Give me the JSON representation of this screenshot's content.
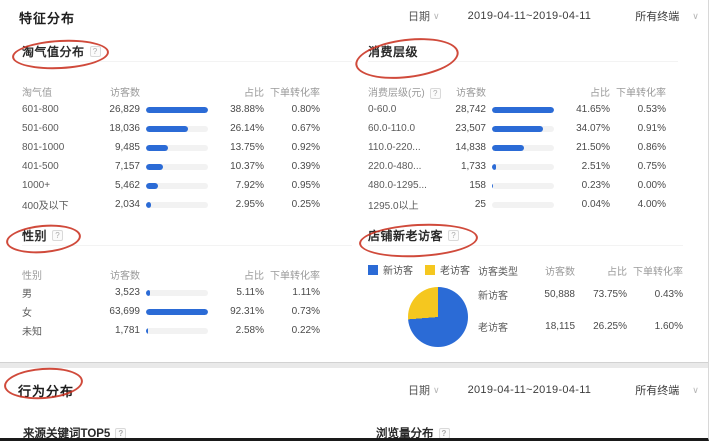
{
  "header": {
    "date_label": "日期",
    "date_range": "2019-04-11~2019-04-11",
    "terminal": "所有终端",
    "chevron": "∨"
  },
  "sections": {
    "feature": {
      "title": "特征分布"
    },
    "behavior": {
      "title": "行为分布"
    }
  },
  "panels": {
    "taoqi": {
      "title": "淘气值分布",
      "help": "?",
      "headers": {
        "h0": "淘气值",
        "h1": "访客数",
        "h2": "占比",
        "h3": "下单转化率"
      },
      "rows": [
        {
          "label": "601-800",
          "visitors": "26,829",
          "bar_pct": 100,
          "share": "38.88%",
          "conversion": "0.80%"
        },
        {
          "label": "501-600",
          "visitors": "18,036",
          "bar_pct": 67,
          "share": "26.14%",
          "conversion": "0.67%"
        },
        {
          "label": "801-1000",
          "visitors": "9,485",
          "bar_pct": 35,
          "share": "13.75%",
          "conversion": "0.92%"
        },
        {
          "label": "401-500",
          "visitors": "7,157",
          "bar_pct": 27,
          "share": "10.37%",
          "conversion": "0.39%"
        },
        {
          "label": "1000+",
          "visitors": "5,462",
          "bar_pct": 20,
          "share": "7.92%",
          "conversion": "0.95%"
        },
        {
          "label": "400及以下",
          "visitors": "2,034",
          "bar_pct": 8,
          "share": "2.95%",
          "conversion": "0.25%"
        }
      ]
    },
    "consumption": {
      "title": "消费层级",
      "help": "?",
      "headers": {
        "h0": "消费层级(元)",
        "h1": "访客数",
        "h2": "占比",
        "h3": "下单转化率"
      },
      "rows": [
        {
          "label": "0-60.0",
          "visitors": "28,742",
          "bar_pct": 100,
          "share": "41.65%",
          "conversion": "0.53%"
        },
        {
          "label": "60.0-110.0",
          "visitors": "23,507",
          "bar_pct": 82,
          "share": "34.07%",
          "conversion": "0.91%"
        },
        {
          "label": "110.0-220...",
          "visitors": "14,838",
          "bar_pct": 52,
          "share": "21.50%",
          "conversion": "0.86%"
        },
        {
          "label": "220.0-480...",
          "visitors": "1,733",
          "bar_pct": 6,
          "share": "2.51%",
          "conversion": "0.75%"
        },
        {
          "label": "480.0-1295...",
          "visitors": "158",
          "bar_pct": 0.5,
          "share": "0.23%",
          "conversion": "0.00%"
        },
        {
          "label": "1295.0以上",
          "visitors": "25",
          "bar_pct": 0.1,
          "share": "0.04%",
          "conversion": "4.00%"
        }
      ]
    },
    "gender": {
      "title": "性别",
      "help": "?",
      "headers": {
        "h0": "性别",
        "h1": "访客数",
        "h2": "占比",
        "h3": "下单转化率"
      },
      "rows": [
        {
          "label": "男",
          "visitors": "3,523",
          "bar_pct": 6,
          "share": "5.11%",
          "conversion": "1.11%"
        },
        {
          "label": "女",
          "visitors": "63,699",
          "bar_pct": 100,
          "share": "92.31%",
          "conversion": "0.73%"
        },
        {
          "label": "未知",
          "visitors": "1,781",
          "bar_pct": 3,
          "share": "2.58%",
          "conversion": "0.22%"
        }
      ]
    },
    "visitors": {
      "title": "店铺新老访客",
      "help": "?",
      "legend": [
        {
          "label": "新访客",
          "color": "#2b6bd6"
        },
        {
          "label": "老访客",
          "color": "#f5c71f"
        }
      ],
      "headers": {
        "h0": "访客类型",
        "h1": "访客数",
        "h2": "占比",
        "h3": "下单转化率"
      },
      "rows": [
        {
          "label": "新访客",
          "visitors": "50,888",
          "share": "73.75%",
          "conversion": "0.43%"
        },
        {
          "label": "老访客",
          "visitors": "18,115",
          "share": "26.25%",
          "conversion": "1.60%"
        }
      ],
      "pie": {
        "new_pct": 73.75,
        "old_pct": 26.25
      }
    },
    "keywords": {
      "title": "来源关键词TOP5",
      "help": "?"
    },
    "pageviews": {
      "title": "浏览量分布",
      "help": "?"
    }
  },
  "colors": {
    "bar": "#2b6bd6",
    "pie_new": "#2b6bd6",
    "pie_old": "#f5c71f",
    "annotation": "#c93120"
  }
}
